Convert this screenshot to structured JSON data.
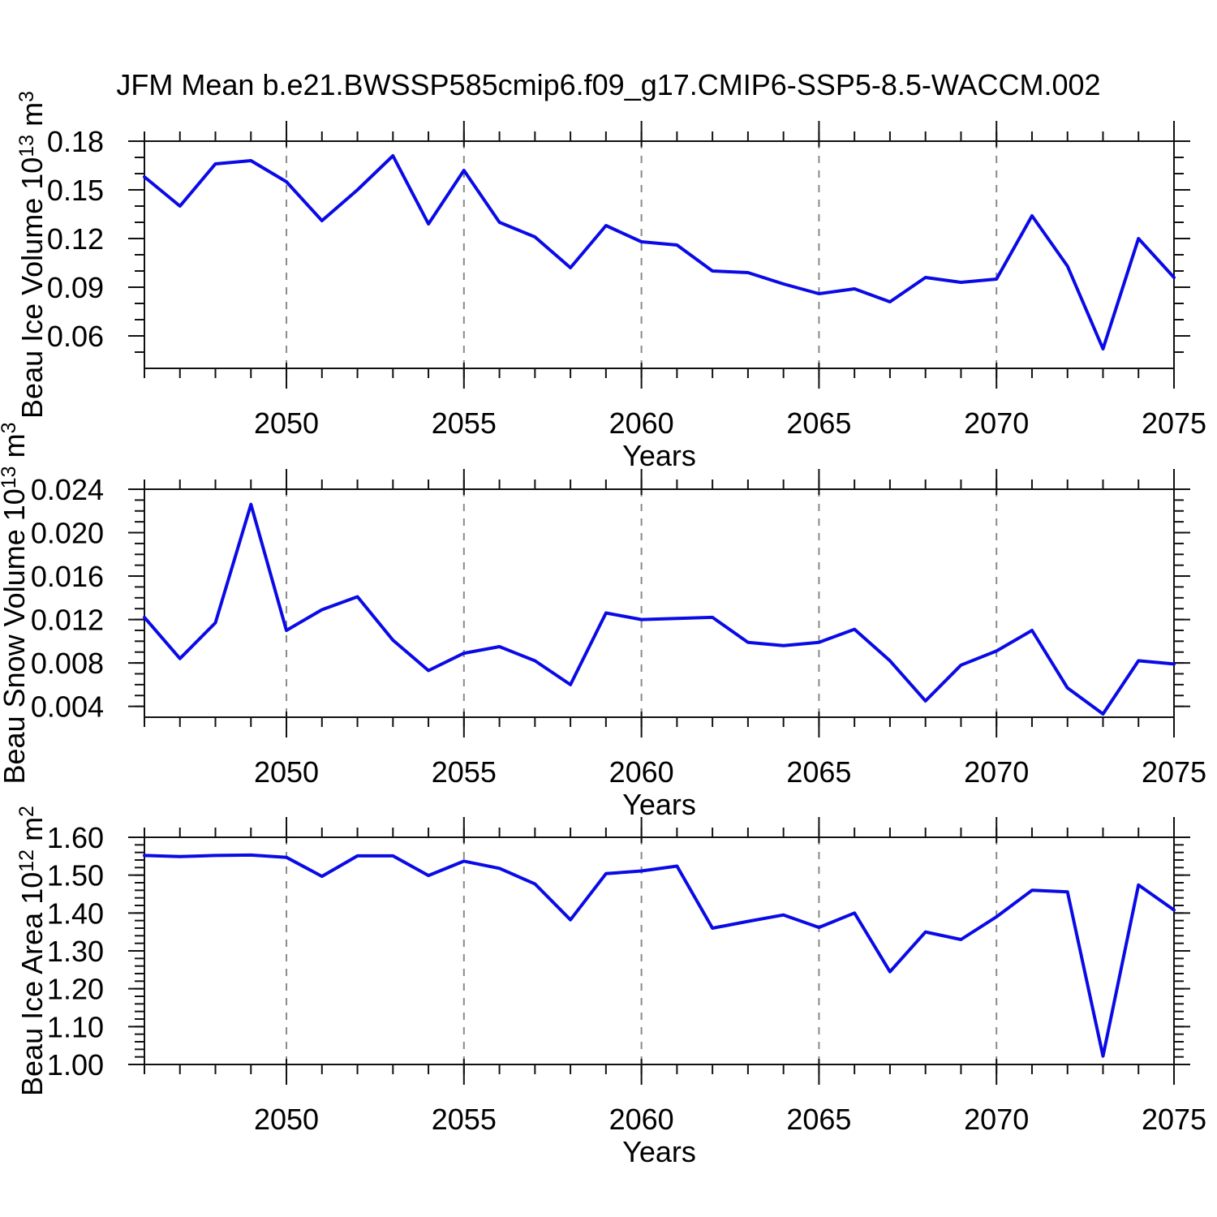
{
  "figure": {
    "title": "JFM Mean b.e21.BWSSP585cmip6.f09_g17.CMIP6-SSP5-8.5-WACCM.002",
    "line_color": "#0A0AE6",
    "grid_color": "#8A8A8A",
    "frame_color": "#111111",
    "text_color": "#000000",
    "background_color": "#FFFFFF"
  },
  "chart_data": {
    "type": "line",
    "title": "JFM Mean b.e21.BWSSP585cmip6.f09_g17.CMIP6-SSP5-8.5-WACCM.002",
    "xlabel": "Years",
    "xlim": [
      2046,
      2075
    ],
    "x_minor_step": 1,
    "xticks": [
      {
        "v": 2050,
        "label": "2050"
      },
      {
        "v": 2055,
        "label": "2055"
      },
      {
        "v": 2060,
        "label": "2060"
      },
      {
        "v": 2065,
        "label": "2065"
      },
      {
        "v": 2070,
        "label": "2070"
      },
      {
        "v": 2075,
        "label": "2075"
      }
    ],
    "grid": {
      "vertical_dashed_at_x_majors": true,
      "horizontal": false
    },
    "legend": null,
    "years": [
      2046,
      2047,
      2048,
      2049,
      2050,
      2051,
      2052,
      2053,
      2054,
      2055,
      2056,
      2057,
      2058,
      2059,
      2060,
      2061,
      2062,
      2063,
      2064,
      2065,
      2066,
      2067,
      2068,
      2069,
      2070,
      2071,
      2072,
      2073,
      2074,
      2075
    ],
    "panels": [
      {
        "name": "beau-ice-volume",
        "ylabel": "Beau Ice Volume 10^13^ m^3^",
        "ylim": [
          0.04,
          0.18
        ],
        "y_minor_step": 0.01,
        "yticks": [
          {
            "v": 0.18,
            "label": "0.18"
          },
          {
            "v": 0.15,
            "label": "0.15"
          },
          {
            "v": 0.12,
            "label": "0.12"
          },
          {
            "v": 0.09,
            "label": "0.09"
          },
          {
            "v": 0.06,
            "label": "0.06"
          }
        ],
        "values": [
          0.158,
          0.14,
          0.166,
          0.168,
          0.155,
          0.131,
          0.15,
          0.171,
          0.129,
          0.162,
          0.13,
          0.121,
          0.102,
          0.128,
          0.118,
          0.116,
          0.1,
          0.099,
          0.092,
          0.086,
          0.089,
          0.081,
          0.096,
          0.093,
          0.095,
          0.134,
          0.103,
          0.052,
          0.12,
          0.096
        ]
      },
      {
        "name": "beau-snow-volume",
        "ylabel": "Beau Snow Volume 10^13^ m^3^",
        "ylim": [
          0.003,
          0.024
        ],
        "y_minor_step": 0.001,
        "yticks": [
          {
            "v": 0.024,
            "label": "0.024"
          },
          {
            "v": 0.02,
            "label": "0.020"
          },
          {
            "v": 0.016,
            "label": "0.016"
          },
          {
            "v": 0.012,
            "label": "0.012"
          },
          {
            "v": 0.008,
            "label": "0.008"
          },
          {
            "v": 0.004,
            "label": "0.004"
          }
        ],
        "values": [
          0.0122,
          0.0084,
          0.0117,
          0.0226,
          0.011,
          0.0129,
          0.0141,
          0.0101,
          0.0073,
          0.0089,
          0.0095,
          0.0082,
          0.006,
          0.0126,
          0.012,
          0.0121,
          0.0122,
          0.0099,
          0.0096,
          0.0099,
          0.0111,
          0.0082,
          0.0045,
          0.0078,
          0.0091,
          0.011,
          0.0057,
          0.0033,
          0.0082,
          0.0079
        ]
      },
      {
        "name": "beau-ice-area",
        "ylabel": "Beau Ice Area 10^12^ m^2^",
        "ylim": [
          1.0,
          1.6
        ],
        "y_minor_step": 0.02,
        "yticks": [
          {
            "v": 1.6,
            "label": "1.60"
          },
          {
            "v": 1.5,
            "label": "1.50"
          },
          {
            "v": 1.4,
            "label": "1.40"
          },
          {
            "v": 1.3,
            "label": "1.30"
          },
          {
            "v": 1.2,
            "label": "1.20"
          },
          {
            "v": 1.1,
            "label": "1.10"
          },
          {
            "v": 1.0,
            "label": "1.00"
          }
        ],
        "values": [
          1.552,
          1.549,
          1.552,
          1.553,
          1.547,
          1.497,
          1.551,
          1.551,
          1.499,
          1.537,
          1.518,
          1.477,
          1.382,
          1.504,
          1.511,
          1.524,
          1.36,
          1.378,
          1.395,
          1.362,
          1.4,
          1.245,
          1.35,
          1.33,
          1.39,
          1.46,
          1.456,
          1.022,
          1.474,
          1.408
        ]
      }
    ]
  }
}
